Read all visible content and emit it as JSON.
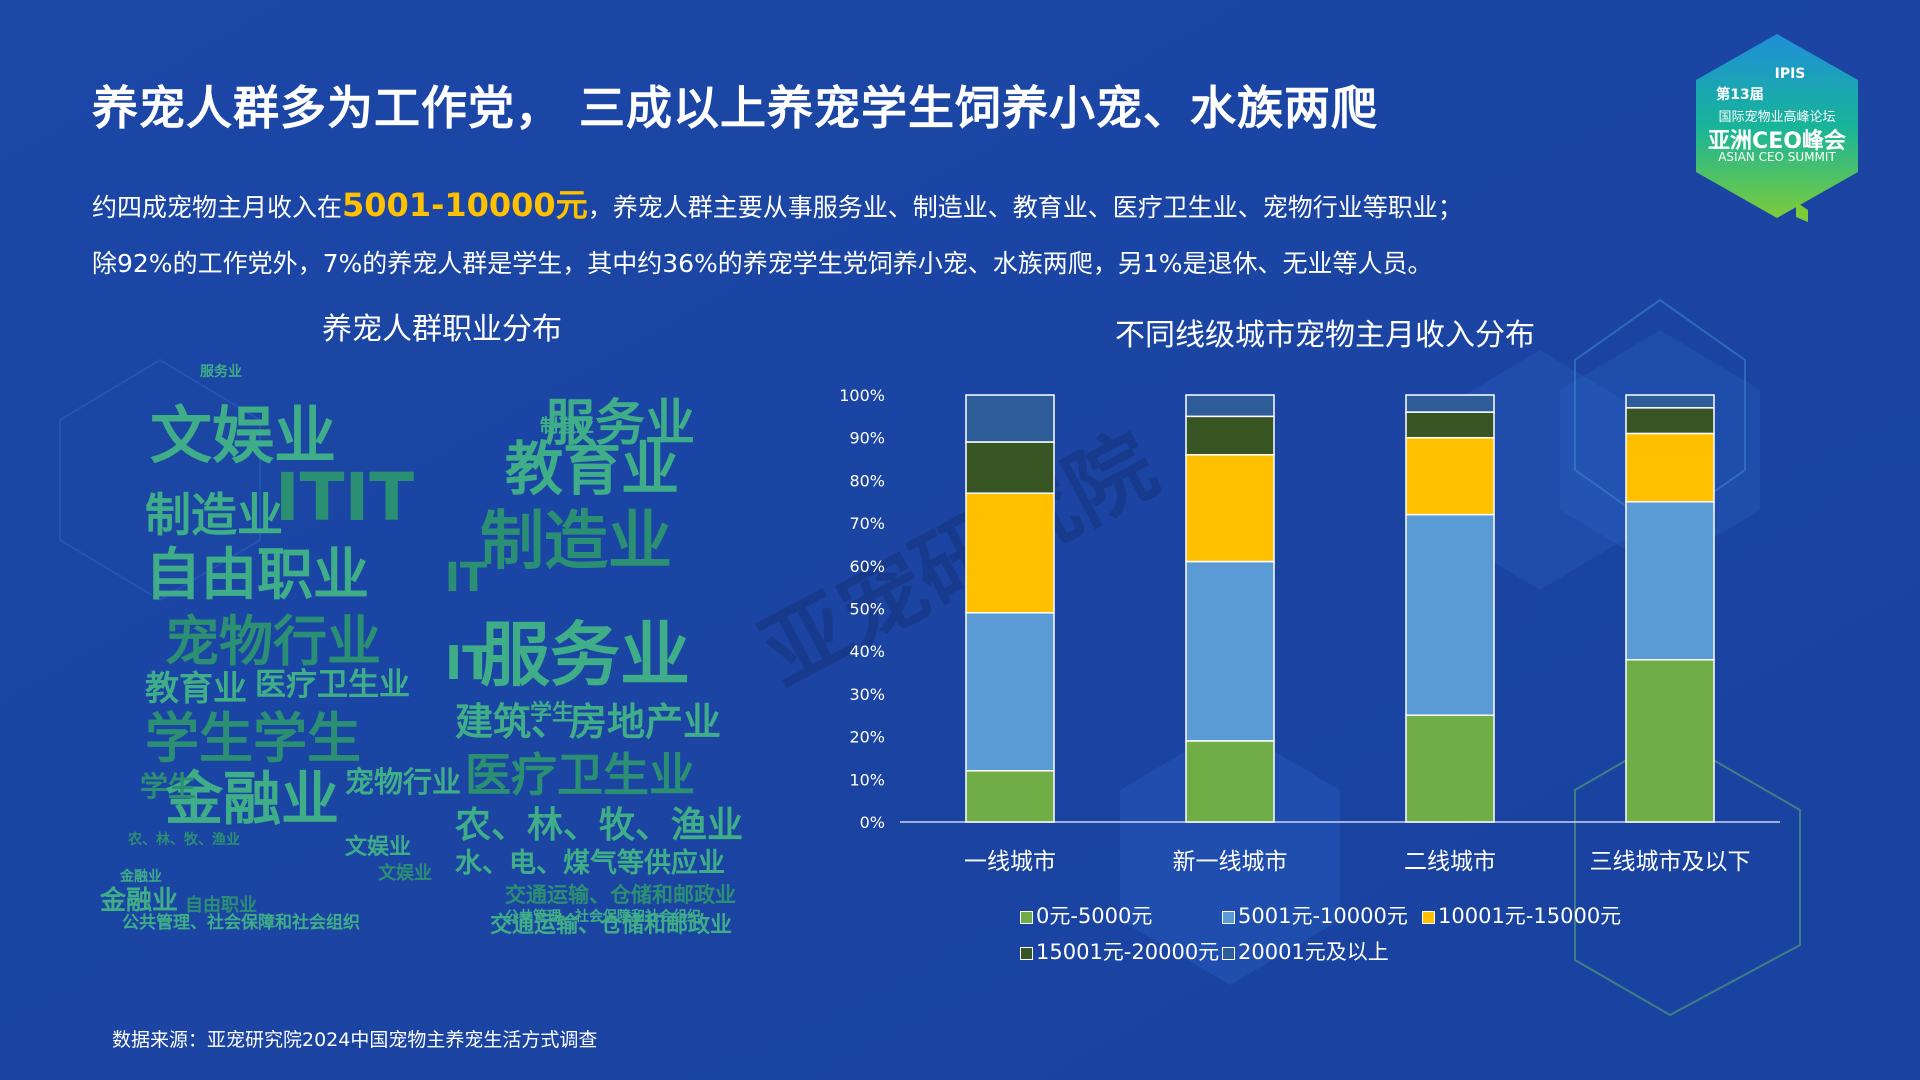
{
  "title": "养宠人群多为工作党， 三成以上养宠学生饲养小宠、水族两爬",
  "desc_line1_pre": "约四成宠物主月收入在",
  "desc_line1_highlight": "5001-10000元",
  "desc_line1_post": "，养宠人群主要从事服务业、制造业、教育业、医疗卫生业、宠物行业等职业；",
  "desc_line2": "除92%的工作党外，7%的养宠人群是学生，其中约36%的养宠学生党饲养小宠、水族两爬，另1%是退休、无业等人员。",
  "wordcloud_title": "养宠人群职业分布",
  "footer": "数据来源：亚宠研究院2024中国宠物主养宠生活方式调查",
  "watermark": "亚宠研究院",
  "badge": {
    "session": "第13届",
    "forum": "国际宠物业高峰论坛",
    "name": "亚洲CEO峰会",
    "english": "ASIAN CEO SUMMIT",
    "logo": "IPIS"
  },
  "colors": {
    "background": "#1a46a3",
    "accent": "#ffc000",
    "wordcloud": "#3fae88"
  },
  "wordcloud_words": [
    {
      "text": "服务业",
      "size": 50
    },
    {
      "text": "教育业",
      "size": 58
    },
    {
      "text": "制造业",
      "size": 64
    },
    {
      "text": "服务业",
      "size": 70
    },
    {
      "text": "建筑、房地产业",
      "size": 38
    },
    {
      "text": "医疗卫生业",
      "size": 46
    },
    {
      "text": "农、林、牧、渔业",
      "size": 36
    },
    {
      "text": "水、电、煤气等供应业",
      "size": 27
    },
    {
      "text": "交通运输、仓储和邮政业",
      "size": 21
    },
    {
      "text": "公共管理、社会保障和社会组织",
      "size": 14
    },
    {
      "text": "文娱业",
      "size": 62
    },
    {
      "text": "ITIT",
      "size": 66
    },
    {
      "text": "制造业",
      "size": 46
    },
    {
      "text": "自由职业",
      "size": 56
    },
    {
      "text": "宠物行业",
      "size": 54
    },
    {
      "text": "教育业",
      "size": 34
    },
    {
      "text": "医疗卫生业",
      "size": 31
    },
    {
      "text": "学生学生",
      "size": 54
    },
    {
      "text": "金融业",
      "size": 58
    },
    {
      "text": "宠物行业",
      "size": 29
    },
    {
      "text": "学生",
      "size": 28
    },
    {
      "text": "文娱业",
      "size": 22
    },
    {
      "text": "金融业",
      "size": 26
    },
    {
      "text": "自由职业",
      "size": 18
    },
    {
      "text": "公共管理、社会保障和社会组织",
      "size": 17
    },
    {
      "text": "交通运输、仓储和邮政业",
      "size": 22
    },
    {
      "text": "IT",
      "size": 40
    },
    {
      "text": "IT",
      "size": 46
    },
    {
      "text": "学生",
      "size": 22
    },
    {
      "text": "文娱业",
      "size": 18
    },
    {
      "text": "制造业",
      "size": 18
    },
    {
      "text": "金融业",
      "size": 14
    },
    {
      "text": "农、林、牧、渔业",
      "size": 14
    },
    {
      "text": "服务业",
      "size": 14
    }
  ],
  "chart_data": {
    "type": "bar",
    "stacked": true,
    "title": "不同线级城市宠物主月收入分布",
    "categories": [
      "一线城市",
      "新一线城市",
      "二线城市",
      "三线城市及以下"
    ],
    "series": [
      {
        "name": "0元-5000元",
        "color": "#70ad47",
        "values": [
          12,
          19,
          25,
          38
        ]
      },
      {
        "name": "5001元-10000元",
        "color": "#5b9bd5",
        "values": [
          37,
          42,
          47,
          37
        ]
      },
      {
        "name": "10001元-15000元",
        "color": "#ffc000",
        "values": [
          28,
          25,
          18,
          16
        ]
      },
      {
        "name": "15001元-20000元",
        "color": "#375623",
        "values": [
          12,
          9,
          6,
          6
        ]
      },
      {
        "name": "20001元及以上",
        "color": "#2e5c99",
        "values": [
          11,
          5,
          4,
          3
        ]
      }
    ],
    "ylim": [
      0,
      100
    ],
    "yticks": [
      "0%",
      "10%",
      "20%",
      "30%",
      "40%",
      "50%",
      "60%",
      "70%",
      "80%",
      "90%",
      "100%"
    ],
    "xlabel": "",
    "ylabel": "",
    "legend_placement": "bottom",
    "grid": false
  }
}
